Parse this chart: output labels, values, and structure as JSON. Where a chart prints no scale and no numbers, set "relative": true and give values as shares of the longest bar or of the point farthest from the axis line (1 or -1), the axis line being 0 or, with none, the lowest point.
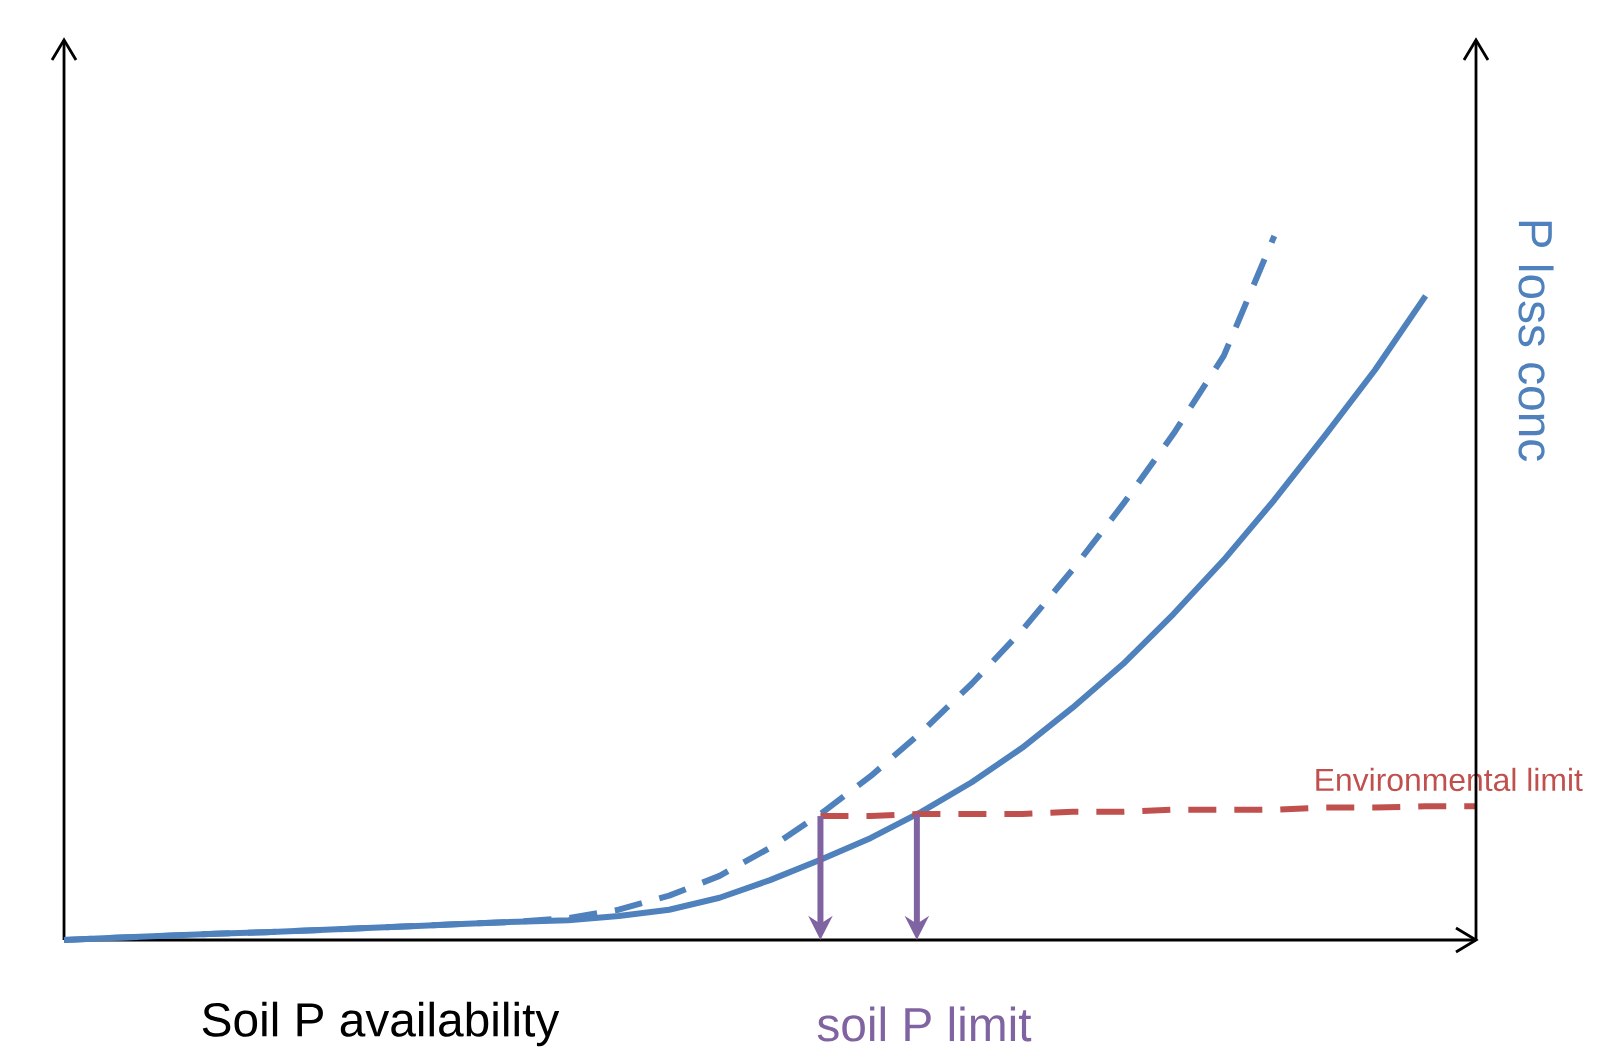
{
  "chart_data": {
    "type": "line",
    "relative": true,
    "xlabel": "Soil P availability",
    "ylabel": "P loss conc",
    "categories": [
      null,
      null,
      null,
      null,
      null,
      null,
      null,
      null,
      null,
      null,
      null,
      null,
      null,
      null,
      null,
      null,
      null,
      null,
      null,
      null,
      null,
      null,
      null,
      null,
      null,
      null,
      null,
      null,
      null
    ],
    "series": [
      {
        "color": "#4f81bd",
        "line_style": "solid",
        "values": [
          0,
          0.003,
          0.006,
          0.009,
          0.011,
          0.014,
          0.017,
          0.02,
          0.023,
          0.026,
          0.028,
          0.034,
          0.043,
          0.06,
          0.085,
          0.114,
          0.145,
          0.182,
          0.224,
          0.273,
          0.33,
          0.392,
          0.463,
          0.54,
          0.625,
          0.716,
          0.81,
          0.915,
          null
        ]
      },
      {
        "color": "#4f81bd",
        "line_style": "dashed",
        "values": [
          0,
          0.003,
          0.006,
          0.009,
          0.011,
          0.014,
          0.017,
          0.02,
          0.023,
          0.026,
          0.031,
          0.043,
          0.063,
          0.091,
          0.131,
          0.179,
          0.233,
          0.295,
          0.364,
          0.44,
          0.526,
          0.619,
          0.719,
          0.83,
          1,
          null,
          null,
          null,
          null
        ]
      },
      {
        "name": "Environmental limit",
        "color": "#c0504d",
        "line_style": "dashed",
        "values": [
          null,
          null,
          null,
          null,
          null,
          null,
          null,
          null,
          null,
          null,
          null,
          null,
          null,
          null,
          null,
          0.176,
          0.176,
          0.179,
          0.179,
          0.179,
          0.182,
          0.182,
          0.185,
          0.185,
          0.185,
          0.188,
          0.188,
          0.19,
          0.19
        ]
      }
    ],
    "annotations": [
      "soil P limit"
    ]
  }
}
